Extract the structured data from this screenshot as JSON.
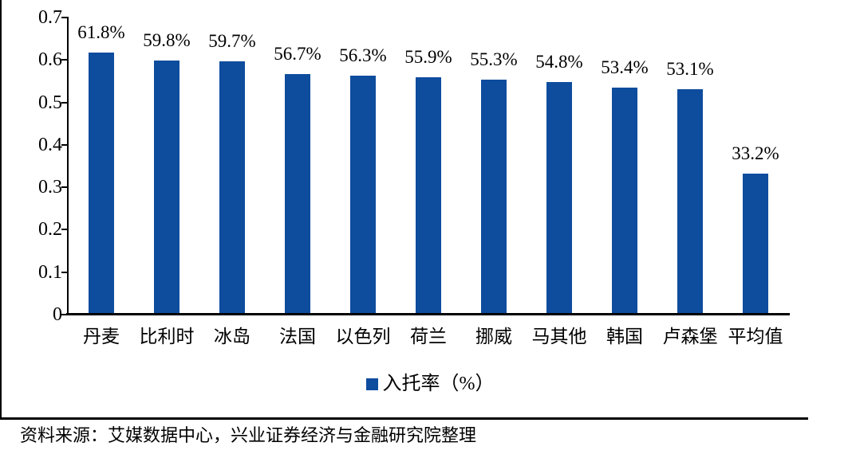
{
  "chart_data": {
    "type": "bar",
    "title": "",
    "categories": [
      "丹麦",
      "比利时",
      "冰岛",
      "法国",
      "以色列",
      "荷兰",
      "挪威",
      "马其他",
      "韩国",
      "卢森堡",
      "平均值"
    ],
    "values": [
      0.618,
      0.598,
      0.597,
      0.567,
      0.563,
      0.559,
      0.553,
      0.548,
      0.534,
      0.531,
      0.332
    ],
    "data_labels": [
      "61.8%",
      "59.8%",
      "59.7%",
      "56.7%",
      "56.3%",
      "55.9%",
      "55.3%",
      "54.8%",
      "53.4%",
      "53.1%",
      "33.2%"
    ],
    "xlabel": "",
    "ylabel": "",
    "ylim": [
      0,
      0.7
    ],
    "ytick_step": 0.1,
    "ytick_labels": [
      "0",
      "0.1",
      "0.2",
      "0.3",
      "0.4",
      "0.5",
      "0.6",
      "0.7"
    ],
    "legend": [
      "入托率（%）"
    ],
    "legend_position": "bottom",
    "grid": false,
    "bar_color": "#0E4C9E"
  },
  "legend": {
    "series_label": "入托率（%）"
  },
  "source": {
    "text": "资料来源：艾媒数据中心，兴业证券经济与金融研究院整理"
  },
  "colors": {
    "bar": "#0E4C9E",
    "axis": "#000000",
    "text": "#000000",
    "background": "#ffffff"
  }
}
